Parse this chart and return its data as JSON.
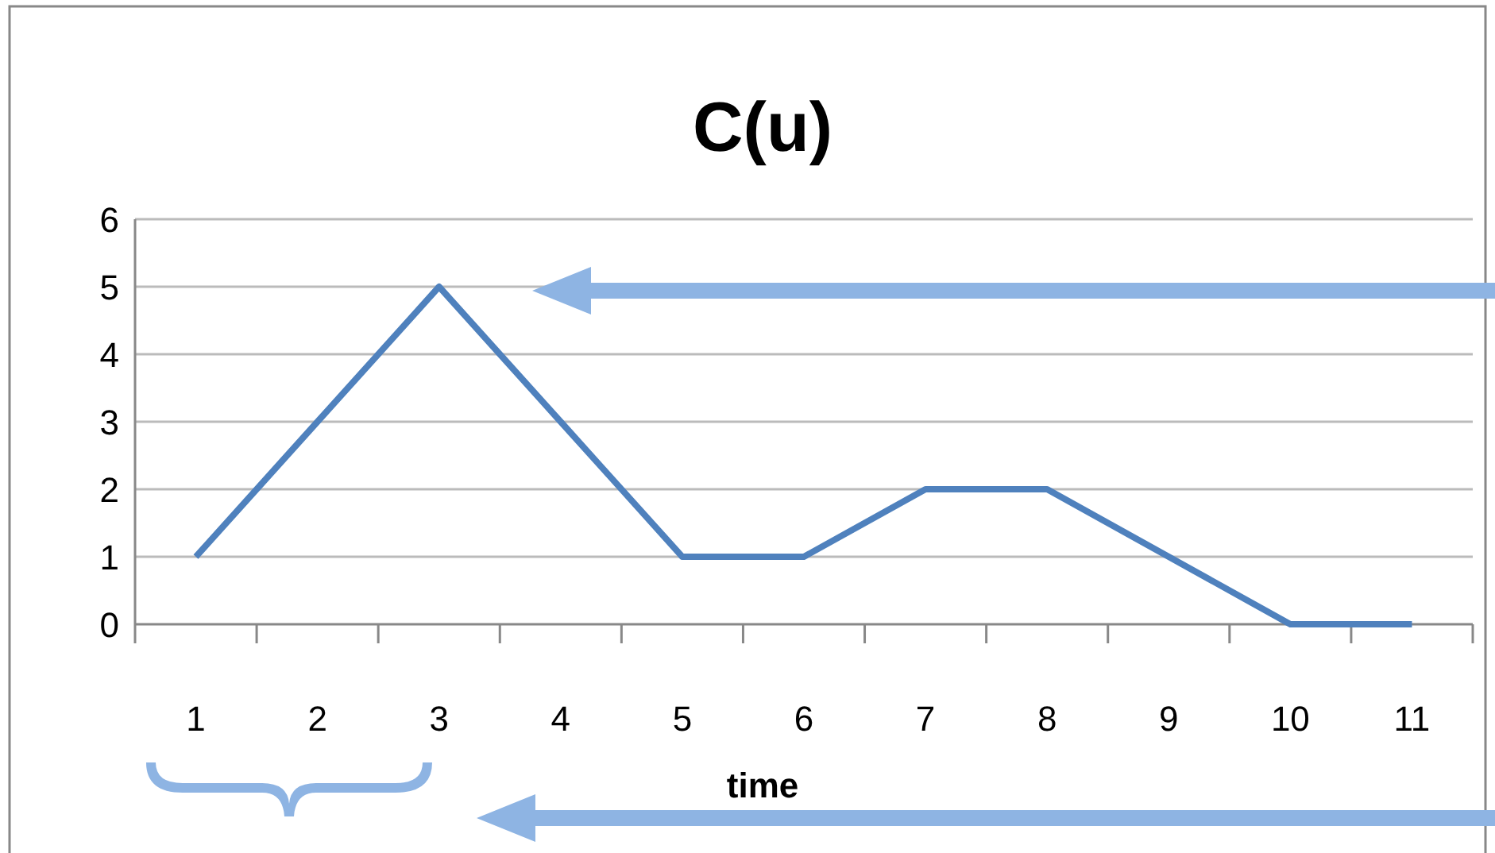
{
  "chart_data": {
    "type": "line",
    "title": "C(u)",
    "xlabel": "time",
    "categories": [
      "1",
      "2",
      "3",
      "4",
      "5",
      "6",
      "7",
      "8",
      "9",
      "10",
      "11"
    ],
    "series": [
      {
        "color": "#4f81bd",
        "values": [
          1,
          3,
          5,
          3,
          1,
          1,
          2,
          2,
          1,
          0,
          0
        ]
      }
    ],
    "ylim": [
      0,
      6
    ],
    "yticks": [
      0,
      1,
      2,
      3,
      4,
      5,
      6
    ],
    "grid": "y",
    "marker": "none",
    "line_style": "solid"
  }
}
